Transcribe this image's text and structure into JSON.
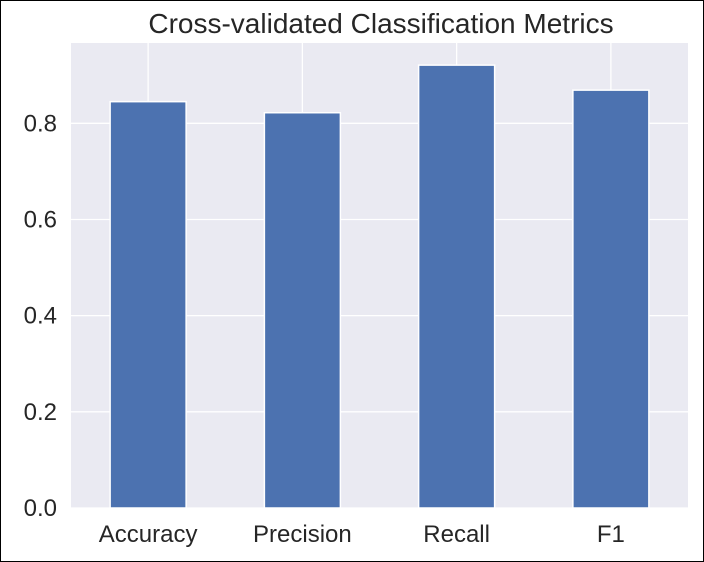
{
  "colors": {
    "plot_background": "#eaeaf2",
    "grid": "#ffffff",
    "bar": "#4c72b0",
    "text": "#262626"
  },
  "chart_data": {
    "type": "bar",
    "title": "Cross-validated Classification Metrics",
    "xlabel": "",
    "ylabel": "",
    "categories": [
      "Accuracy",
      "Precision",
      "Recall",
      "F1"
    ],
    "values": [
      0.845,
      0.822,
      0.921,
      0.869
    ],
    "ylim": [
      0,
      0.967
    ],
    "yticks": [
      0.0,
      0.2,
      0.4,
      0.6,
      0.8
    ],
    "ytick_labels": [
      "0.0",
      "0.2",
      "0.4",
      "0.6",
      "0.8"
    ],
    "grid": true,
    "legend": "none"
  }
}
